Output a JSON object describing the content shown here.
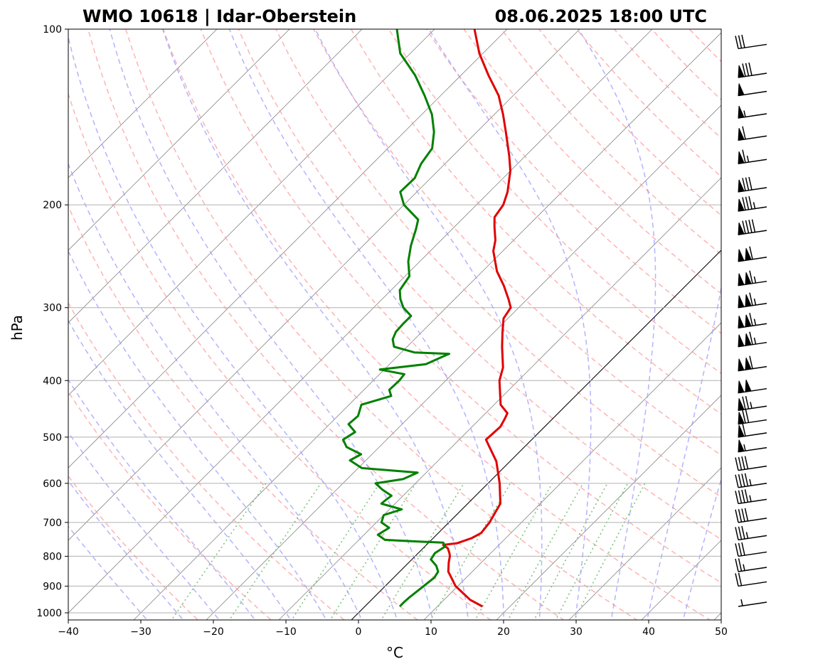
{
  "chart_data": {
    "type": "skew-t log-p sounding",
    "title_left": "WMO 10618 | Idar-Oberstein",
    "title_right": "08.06.2025 18:00 UTC",
    "xlabel": "°C",
    "ylabel": "hPa",
    "xlim": [
      -40,
      50
    ],
    "ylim": [
      1020,
      100
    ],
    "x_scale": "skewed temperature",
    "y_scale": "log",
    "x_ticks": [
      -40,
      -30,
      -20,
      -10,
      0,
      10,
      20,
      30,
      40,
      50
    ],
    "x_tick_labels": [
      "−40",
      "−30",
      "−20",
      "−10",
      "0",
      "10",
      "20",
      "30",
      "40",
      "50"
    ],
    "y_ticks": [
      1000,
      900,
      800,
      700,
      600,
      500,
      400,
      300,
      200,
      100
    ],
    "y_tick_labels": [
      "1000",
      "900",
      "800",
      "700",
      "600",
      "500",
      "400",
      "300",
      "200",
      "100"
    ],
    "grid": true,
    "reference_lines": {
      "isotherms": {
        "style": "solid",
        "color": "#888888",
        "values": [
          -100,
          -90,
          -80,
          -70,
          -60,
          -50,
          -40,
          -30,
          -20,
          -10,
          0,
          10,
          20,
          30,
          40,
          50
        ]
      },
      "dry_adiabats": {
        "style": "dashed",
        "color": "#ff9999",
        "theta_K": [
          250,
          260,
          270,
          280,
          290,
          300,
          310,
          320,
          330,
          340,
          350,
          360,
          370,
          380,
          390,
          400,
          410,
          420,
          430,
          440,
          450,
          460,
          470
        ]
      },
      "moist_adiabats": {
        "style": "dashed",
        "color": "#9999ff",
        "start_temp_C_at_1000": [
          -30,
          -25,
          -20,
          -15,
          -10,
          -5,
          0,
          5,
          10,
          15,
          20,
          25,
          30,
          35,
          40,
          45
        ]
      },
      "mixing_ratio": {
        "style": "dotted",
        "color": "#66bb66",
        "g_per_kg": [
          0.5,
          1,
          2,
          3,
          5,
          8,
          12,
          16,
          20,
          24,
          28
        ]
      },
      "zero_isotherm_highlight": {
        "color": "#000000",
        "value": 0
      }
    },
    "series": [
      {
        "color": "#e00000",
        "kind": "temperature",
        "points": [
          [
            975,
            16.2
          ],
          [
            950,
            13.6
          ],
          [
            900,
            9.7
          ],
          [
            850,
            6.7
          ],
          [
            820,
            5.5
          ],
          [
            800,
            4.8
          ],
          [
            790,
            4.3
          ],
          [
            775,
            3.4
          ],
          [
            765,
            2.3
          ],
          [
            760,
            4.0
          ],
          [
            745,
            5.3
          ],
          [
            730,
            5.9
          ],
          [
            700,
            5.6
          ],
          [
            650,
            4.5
          ],
          [
            600,
            1.6
          ],
          [
            550,
            -1.9
          ],
          [
            520,
            -4.8
          ],
          [
            505,
            -6.3
          ],
          [
            480,
            -6.1
          ],
          [
            465,
            -6.6
          ],
          [
            455,
            -7.0
          ],
          [
            440,
            -9.1
          ],
          [
            400,
            -12.6
          ],
          [
            380,
            -13.9
          ],
          [
            350,
            -16.9
          ],
          [
            330,
            -18.9
          ],
          [
            313,
            -20.6
          ],
          [
            300,
            -21.1
          ],
          [
            290,
            -22.6
          ],
          [
            275,
            -25.1
          ],
          [
            260,
            -28.0
          ],
          [
            240,
            -31.3
          ],
          [
            230,
            -32.5
          ],
          [
            218,
            -34.5
          ],
          [
            210,
            -35.8
          ],
          [
            200,
            -36.3
          ],
          [
            190,
            -37.5
          ],
          [
            175,
            -40.0
          ],
          [
            165,
            -42.2
          ],
          [
            150,
            -46.0
          ],
          [
            140,
            -48.8
          ],
          [
            130,
            -52.0
          ],
          [
            120,
            -56.2
          ],
          [
            110,
            -60.5
          ],
          [
            100,
            -64.5
          ]
        ]
      },
      {
        "color": "#008000",
        "kind": "dewpoint",
        "points": [
          [
            975,
            4.8
          ],
          [
            960,
            4.8
          ],
          [
            940,
            4.9
          ],
          [
            900,
            5.3
          ],
          [
            870,
            5.6
          ],
          [
            850,
            5.3
          ],
          [
            830,
            4.2
          ],
          [
            810,
            2.6
          ],
          [
            790,
            2.3
          ],
          [
            770,
            2.8
          ],
          [
            758,
            2.0
          ],
          [
            755,
            -1.5
          ],
          [
            750,
            -6.4
          ],
          [
            735,
            -8.1
          ],
          [
            715,
            -7.5
          ],
          [
            700,
            -9.3
          ],
          [
            680,
            -10.0
          ],
          [
            665,
            -8.3
          ],
          [
            650,
            -11.9
          ],
          [
            640,
            -11.8
          ],
          [
            630,
            -11.6
          ],
          [
            615,
            -13.7
          ],
          [
            600,
            -15.5
          ],
          [
            590,
            -12.3
          ],
          [
            575,
            -11.2
          ],
          [
            565,
            -19.5
          ],
          [
            548,
            -22.2
          ],
          [
            535,
            -21.5
          ],
          [
            520,
            -24.5
          ],
          [
            505,
            -26.0
          ],
          [
            490,
            -25.4
          ],
          [
            475,
            -27.4
          ],
          [
            460,
            -27.2
          ],
          [
            440,
            -28.3
          ],
          [
            425,
            -25.4
          ],
          [
            415,
            -26.5
          ],
          [
            400,
            -26.4
          ],
          [
            390,
            -26.6
          ],
          [
            383,
            -30.6
          ],
          [
            375,
            -25.0
          ],
          [
            362,
            -23.5
          ],
          [
            360,
            -23.2
          ],
          [
            358,
            -28.2
          ],
          [
            350,
            -31.8
          ],
          [
            340,
            -33.0
          ],
          [
            330,
            -33.6
          ],
          [
            320,
            -33.7
          ],
          [
            310,
            -33.7
          ],
          [
            300,
            -35.9
          ],
          [
            290,
            -37.5
          ],
          [
            280,
            -38.8
          ],
          [
            265,
            -39.4
          ],
          [
            250,
            -41.6
          ],
          [
            235,
            -43.4
          ],
          [
            220,
            -45.0
          ],
          [
            212,
            -46.0
          ],
          [
            200,
            -50.0
          ],
          [
            190,
            -52.3
          ],
          [
            180,
            -52.2
          ],
          [
            170,
            -53.3
          ],
          [
            160,
            -53.9
          ],
          [
            150,
            -55.9
          ],
          [
            140,
            -58.6
          ],
          [
            130,
            -62.2
          ],
          [
            120,
            -66.3
          ],
          [
            110,
            -71.4
          ],
          [
            100,
            -75.2
          ]
        ]
      }
    ],
    "wind_barbs": {
      "color": "#000000",
      "position": "right margin",
      "units": "kt",
      "levels": [
        {
          "p": 975,
          "speed_kt": 5
        },
        {
          "p": 900,
          "speed_kt": 20
        },
        {
          "p": 850,
          "speed_kt": 25
        },
        {
          "p": 800,
          "speed_kt": 30
        },
        {
          "p": 750,
          "speed_kt": 35
        },
        {
          "p": 700,
          "speed_kt": 40
        },
        {
          "p": 650,
          "speed_kt": 45
        },
        {
          "p": 610,
          "speed_kt": 45
        },
        {
          "p": 570,
          "speed_kt": 40
        },
        {
          "p": 530,
          "speed_kt": 55
        },
        {
          "p": 500,
          "speed_kt": 60
        },
        {
          "p": 475,
          "speed_kt": 70
        },
        {
          "p": 450,
          "speed_kt": 75
        },
        {
          "p": 420,
          "speed_kt": 100
        },
        {
          "p": 385,
          "speed_kt": 110
        },
        {
          "p": 350,
          "speed_kt": 115
        },
        {
          "p": 325,
          "speed_kt": 115
        },
        {
          "p": 300,
          "speed_kt": 115
        },
        {
          "p": 275,
          "speed_kt": 115
        },
        {
          "p": 250,
          "speed_kt": 110
        },
        {
          "p": 225,
          "speed_kt": 90
        },
        {
          "p": 205,
          "speed_kt": 85
        },
        {
          "p": 190,
          "speed_kt": 80
        },
        {
          "p": 170,
          "speed_kt": 65
        },
        {
          "p": 155,
          "speed_kt": 60
        },
        {
          "p": 142,
          "speed_kt": 55
        },
        {
          "p": 130,
          "speed_kt": 50
        },
        {
          "p": 121,
          "speed_kt": 80
        },
        {
          "p": 108,
          "speed_kt": 30
        }
      ]
    }
  }
}
